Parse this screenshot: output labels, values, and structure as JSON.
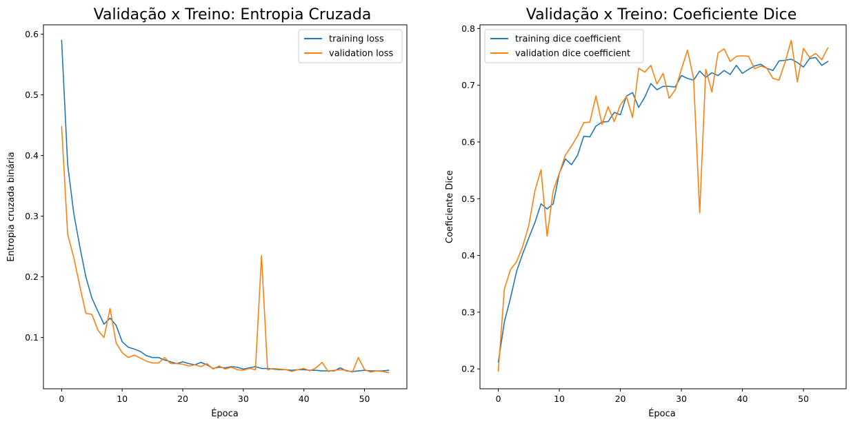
{
  "colors": {
    "series1": "#1f77b4",
    "series2": "#ff7f0e"
  },
  "chart_data": [
    {
      "type": "line",
      "title": "Validação x Treino: Entropia Cruzada",
      "xlabel": "Época",
      "ylabel": "Entropia cruzada binária",
      "xlim": [
        -3,
        57
      ],
      "ylim": [
        0.0155,
        0.6155
      ],
      "xticks": [
        0,
        10,
        20,
        30,
        40,
        50
      ],
      "yticks": [
        0.1,
        0.2,
        0.3,
        0.4,
        0.5,
        0.6
      ],
      "ytick_labels": [
        "0.1",
        "0.2",
        "0.3",
        "0.4",
        "0.5",
        "0.6"
      ],
      "grid": false,
      "legend_position": "upper right",
      "series": [
        {
          "name": "training loss",
          "values": [
            0.59,
            0.385,
            0.305,
            0.25,
            0.2,
            0.165,
            0.143,
            0.122,
            0.132,
            0.12,
            0.093,
            0.084,
            0.081,
            0.077,
            0.07,
            0.067,
            0.067,
            0.063,
            0.06,
            0.057,
            0.06,
            0.057,
            0.055,
            0.059,
            0.055,
            0.049,
            0.051,
            0.05,
            0.052,
            0.051,
            0.048,
            0.05,
            0.052,
            0.049,
            0.049,
            0.048,
            0.047,
            0.047,
            0.046,
            0.047,
            0.047,
            0.046,
            0.046,
            0.045,
            0.045,
            0.045,
            0.05,
            0.045,
            0.044,
            0.045,
            0.046,
            0.045,
            0.045,
            0.045,
            0.046
          ]
        },
        {
          "name": "validation loss",
          "values": [
            0.448,
            0.27,
            0.232,
            0.185,
            0.14,
            0.138,
            0.112,
            0.1,
            0.148,
            0.091,
            0.075,
            0.067,
            0.071,
            0.066,
            0.061,
            0.058,
            0.058,
            0.067,
            0.057,
            0.057,
            0.056,
            0.053,
            0.055,
            0.052,
            0.057,
            0.048,
            0.053,
            0.048,
            0.051,
            0.047,
            0.046,
            0.049,
            0.047,
            0.235,
            0.047,
            0.049,
            0.048,
            0.047,
            0.044,
            0.047,
            0.049,
            0.045,
            0.05,
            0.059,
            0.044,
            0.046,
            0.047,
            0.046,
            0.043,
            0.067,
            0.047,
            0.043,
            0.045,
            0.044,
            0.042
          ]
        }
      ]
    },
    {
      "type": "line",
      "title": "Validação x Treino: Coeficiente Dice",
      "xlabel": "Época",
      "ylabel": "Coeficiente Dice",
      "xlim": [
        -3,
        57
      ],
      "ylim": [
        0.165,
        0.8065
      ],
      "xticks": [
        0,
        10,
        20,
        30,
        40,
        50
      ],
      "yticks": [
        0.2,
        0.3,
        0.4,
        0.5,
        0.6,
        0.7,
        0.8
      ],
      "ytick_labels": [
        "0.2",
        "0.3",
        "0.4",
        "0.5",
        "0.6",
        "0.7",
        "0.8"
      ],
      "grid": false,
      "legend_position": "upper left",
      "series": [
        {
          "name": "training dice coefficient",
          "values": [
            0.212,
            0.283,
            0.325,
            0.372,
            0.403,
            0.431,
            0.458,
            0.491,
            0.482,
            0.491,
            0.545,
            0.57,
            0.56,
            0.577,
            0.61,
            0.609,
            0.628,
            0.635,
            0.636,
            0.652,
            0.648,
            0.681,
            0.687,
            0.661,
            0.679,
            0.703,
            0.692,
            0.698,
            0.698,
            0.697,
            0.717,
            0.712,
            0.709,
            0.725,
            0.714,
            0.722,
            0.717,
            0.726,
            0.719,
            0.735,
            0.721,
            0.728,
            0.734,
            0.737,
            0.73,
            0.726,
            0.743,
            0.744,
            0.746,
            0.74,
            0.732,
            0.747,
            0.749,
            0.735,
            0.742
          ]
        },
        {
          "name": "validation dice coefficient",
          "values": [
            0.196,
            0.341,
            0.375,
            0.389,
            0.416,
            0.453,
            0.514,
            0.551,
            0.434,
            0.514,
            0.545,
            0.577,
            0.593,
            0.611,
            0.634,
            0.635,
            0.681,
            0.631,
            0.662,
            0.636,
            0.665,
            0.68,
            0.643,
            0.73,
            0.723,
            0.735,
            0.702,
            0.721,
            0.677,
            0.692,
            0.728,
            0.762,
            0.712,
            0.475,
            0.728,
            0.688,
            0.757,
            0.764,
            0.742,
            0.751,
            0.752,
            0.751,
            0.729,
            0.734,
            0.73,
            0.712,
            0.709,
            0.741,
            0.779,
            0.706,
            0.765,
            0.749,
            0.756,
            0.745,
            0.766
          ]
        }
      ]
    }
  ]
}
